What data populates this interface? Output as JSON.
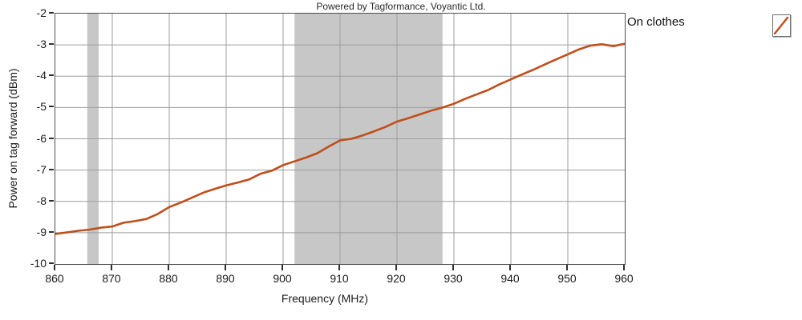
{
  "title": "Powered by Tagformance, Voyantic Ltd.",
  "legend": {
    "label": "On clothes",
    "sample_icon": "diagonal-line-sample",
    "line_color": "#bf4e1a"
  },
  "colors": {
    "series": "#bf4e1a",
    "regulatory_band": "#c7c7c7",
    "gridline": "#9d9d9d",
    "plot_border": "#4c4c4c",
    "text": "#1b1b1b",
    "background": "#ffffff"
  },
  "chart_data": {
    "type": "line",
    "title": "Powered by Tagformance, Voyantic Ltd.",
    "xlabel": "Frequency (MHz)",
    "ylabel": "Power on tag forward (dBm)",
    "xlim": [
      860,
      960
    ],
    "ylim": [
      -10,
      -2
    ],
    "x_ticks": [
      860,
      870,
      880,
      890,
      900,
      910,
      920,
      930,
      940,
      950,
      960
    ],
    "y_ticks": [
      -10,
      -9,
      -8,
      -7,
      -6,
      -5,
      -4,
      -3,
      -2
    ],
    "grid": true,
    "legend_position": "top-right-outside",
    "bands": [
      {
        "x0": 865.6,
        "x1": 867.6
      },
      {
        "x0": 902,
        "x1": 928
      }
    ],
    "series": [
      {
        "name": "On clothes",
        "color": "#bf4e1a",
        "x": [
          860,
          862,
          864,
          866,
          868,
          870,
          872,
          874,
          876,
          878,
          880,
          882,
          884,
          886,
          888,
          890,
          892,
          894,
          896,
          898,
          900,
          902,
          904,
          906,
          908,
          910,
          912,
          914,
          916,
          918,
          920,
          922,
          924,
          926,
          928,
          930,
          932,
          934,
          936,
          938,
          940,
          942,
          944,
          946,
          948,
          950,
          952,
          954,
          956,
          958,
          960
        ],
        "y": [
          -9.04,
          -8.99,
          -8.94,
          -8.9,
          -8.84,
          -8.8,
          -8.68,
          -8.63,
          -8.56,
          -8.4,
          -8.18,
          -8.04,
          -7.88,
          -7.72,
          -7.6,
          -7.49,
          -7.4,
          -7.3,
          -7.12,
          -7.02,
          -6.84,
          -6.72,
          -6.6,
          -6.46,
          -6.25,
          -6.05,
          -6.0,
          -5.89,
          -5.76,
          -5.62,
          -5.45,
          -5.34,
          -5.22,
          -5.1,
          -5.0,
          -4.88,
          -4.72,
          -4.58,
          -4.44,
          -4.26,
          -4.1,
          -3.94,
          -3.79,
          -3.62,
          -3.46,
          -3.3,
          -3.14,
          -3.02,
          -2.98,
          -3.04,
          -2.96
        ]
      }
    ]
  }
}
